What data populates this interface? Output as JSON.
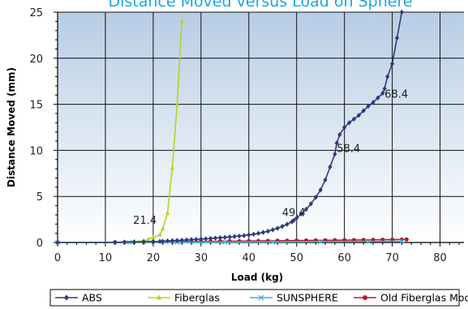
{
  "chart_data": {
    "type": "line",
    "title": "Distance Moved versus Load on Sphere",
    "xlabel": "Load (kg)",
    "ylabel": "Distance Moved (mm)",
    "xlim": [
      0,
      85
    ],
    "ylim": [
      0,
      25
    ],
    "x_ticks": [
      "0",
      "10",
      "20",
      "30",
      "40",
      "50",
      "60",
      "70",
      "80"
    ],
    "y_ticks": [
      "0",
      "5",
      "10",
      "15",
      "20",
      "25"
    ],
    "grid": true,
    "legend_position": "bottom",
    "series": [
      {
        "name": "ABS",
        "color": "#2e3a7a",
        "marker": "diamond",
        "points": [
          [
            0,
            0
          ],
          [
            12,
            0.02
          ],
          [
            14,
            0.04
          ],
          [
            16,
            0.06
          ],
          [
            18,
            0.08
          ],
          [
            20,
            0.1
          ],
          [
            21.4,
            0.12
          ],
          [
            22,
            0.14
          ],
          [
            23,
            0.17
          ],
          [
            24,
            0.2
          ],
          [
            25,
            0.22
          ],
          [
            26,
            0.25
          ],
          [
            27,
            0.28
          ],
          [
            28,
            0.31
          ],
          [
            29,
            0.34
          ],
          [
            30,
            0.37
          ],
          [
            31,
            0.4
          ],
          [
            32,
            0.44
          ],
          [
            33,
            0.48
          ],
          [
            34,
            0.52
          ],
          [
            35,
            0.56
          ],
          [
            36,
            0.6
          ],
          [
            37,
            0.65
          ],
          [
            38,
            0.7
          ],
          [
            39,
            0.75
          ],
          [
            40,
            0.82
          ],
          [
            41,
            0.9
          ],
          [
            42,
            1.0
          ],
          [
            43,
            1.1
          ],
          [
            44,
            1.22
          ],
          [
            45,
            1.38
          ],
          [
            46,
            1.55
          ],
          [
            47,
            1.75
          ],
          [
            48,
            1.98
          ],
          [
            49,
            2.25
          ],
          [
            49.4,
            2.4
          ],
          [
            50,
            2.65
          ],
          [
            51,
            3.1
          ],
          [
            52,
            3.6
          ],
          [
            53,
            4.2
          ],
          [
            54,
            4.9
          ],
          [
            55,
            5.7
          ],
          [
            56,
            6.8
          ],
          [
            57,
            8.2
          ],
          [
            58,
            9.6
          ],
          [
            58.4,
            10.8
          ],
          [
            59,
            11.7
          ],
          [
            60,
            12.5
          ],
          [
            61,
            13.0
          ],
          [
            62,
            13.4
          ],
          [
            63,
            13.8
          ],
          [
            64,
            14.3
          ],
          [
            65,
            14.8
          ],
          [
            66,
            15.2
          ],
          [
            67,
            15.7
          ],
          [
            68,
            16.2
          ],
          [
            68.4,
            16.7
          ],
          [
            69,
            18.0
          ],
          [
            70,
            19.4
          ],
          [
            71,
            22.2
          ],
          [
            72,
            25.0
          ]
        ]
      },
      {
        "name": "Fiberglas",
        "color": "#b6d31e",
        "marker": "triangle",
        "points": [
          [
            0,
            0
          ],
          [
            12,
            0.02
          ],
          [
            14,
            0.05
          ],
          [
            16,
            0.1
          ],
          [
            18,
            0.2
          ],
          [
            19,
            0.35
          ],
          [
            20,
            0.55
          ],
          [
            21.4,
            0.85
          ],
          [
            22,
            1.5
          ],
          [
            23,
            3.2
          ],
          [
            24,
            8.1
          ],
          [
            25,
            15.0
          ],
          [
            26,
            24.0
          ]
        ]
      },
      {
        "name": "SUNSPHERE",
        "color": "#3db4e8",
        "marker": "x",
        "points": [
          [
            0,
            0
          ],
          [
            15,
            0.01
          ],
          [
            25,
            0.03
          ],
          [
            35,
            0.05
          ],
          [
            45,
            0.07
          ],
          [
            55,
            0.09
          ],
          [
            65,
            0.11
          ],
          [
            72,
            0.13
          ]
        ]
      },
      {
        "name": "Old Fiberglas Model",
        "color": "#b0202a",
        "marker": "circle",
        "points": [
          [
            0,
            0
          ],
          [
            12,
            0.02
          ],
          [
            14,
            0.03
          ],
          [
            16,
            0.04
          ],
          [
            18,
            0.05
          ],
          [
            20,
            0.06
          ],
          [
            22,
            0.07
          ],
          [
            24,
            0.08
          ],
          [
            26,
            0.09
          ],
          [
            28,
            0.1
          ],
          [
            30,
            0.11
          ],
          [
            32,
            0.12
          ],
          [
            34,
            0.13
          ],
          [
            36,
            0.14
          ],
          [
            38,
            0.15
          ],
          [
            40,
            0.16
          ],
          [
            42,
            0.17
          ],
          [
            44,
            0.18
          ],
          [
            46,
            0.19
          ],
          [
            48,
            0.2
          ],
          [
            50,
            0.21
          ],
          [
            52,
            0.22
          ],
          [
            54,
            0.23
          ],
          [
            56,
            0.24
          ],
          [
            58,
            0.25
          ],
          [
            60,
            0.26
          ],
          [
            62,
            0.27
          ],
          [
            64,
            0.28
          ],
          [
            66,
            0.29
          ],
          [
            68,
            0.3
          ],
          [
            70,
            0.31
          ],
          [
            72,
            0.32
          ],
          [
            73,
            0.33
          ]
        ]
      }
    ],
    "annotations": [
      {
        "text": "21.4",
        "x": 21.4,
        "y": 0.9,
        "anchor": "end"
      },
      {
        "text": "49.4",
        "x": 49.4,
        "y": 2.4,
        "anchor": "middle"
      },
      {
        "text": "58.4",
        "x": 58.4,
        "y": 10.8,
        "anchor": "start"
      },
      {
        "text": "68.4",
        "x": 68.4,
        "y": 16.7,
        "anchor": "start"
      }
    ]
  }
}
